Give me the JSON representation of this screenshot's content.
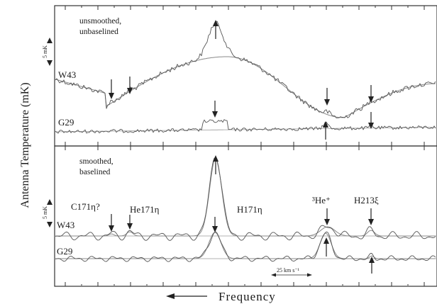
{
  "chart_data": [
    {
      "type": "line",
      "panel": "top",
      "notes": [
        "unsmoothed,",
        "unbaselined"
      ],
      "scale_bar_label": "5 mK",
      "series": [
        {
          "name": "W43",
          "x": [
            0,
            10,
            20,
            30,
            40,
            50,
            60,
            70,
            80,
            90,
            100
          ],
          "y": [
            6,
            2,
            2.5,
            5,
            8.5,
            10,
            8.5,
            4.5,
            1.5,
            3,
            6
          ],
          "baseline_model": "broad sinusoidal fit"
        },
        {
          "name": "G29",
          "x": [
            0,
            10,
            20,
            30,
            40,
            50,
            60,
            70,
            80,
            90,
            100
          ],
          "y": [
            0,
            0,
            0,
            0.3,
            1.5,
            0,
            0,
            1.5,
            0,
            0.5,
            0
          ],
          "baseline_model": "near-flat fit"
        }
      ],
      "arrow_x": [
        16,
        22,
        42,
        78,
        89
      ]
    },
    {
      "type": "line",
      "panel": "bottom",
      "notes": [
        "smoothed,",
        "baselined"
      ],
      "scale_bar_label": "5 mK",
      "line_labels": [
        "C171η?",
        "He171η",
        "H171η",
        "³He⁺",
        "H213ξ"
      ],
      "velocity_scale_label": "25 km s⁻¹",
      "series": [
        {
          "name": "W43",
          "line_centers": [
            16,
            22,
            42,
            78,
            89
          ],
          "peak_mK": [
            0.5,
            1.0,
            12.5,
            1.3,
            0.8
          ]
        },
        {
          "name": "G29",
          "line_centers": [
            42,
            78,
            89
          ],
          "peak_mK": [
            3.5,
            3.5,
            0.4
          ]
        }
      ]
    }
  ],
  "axes": {
    "ylabel": "Antenna Temperature (mK)",
    "xlabel": "Frequency"
  }
}
